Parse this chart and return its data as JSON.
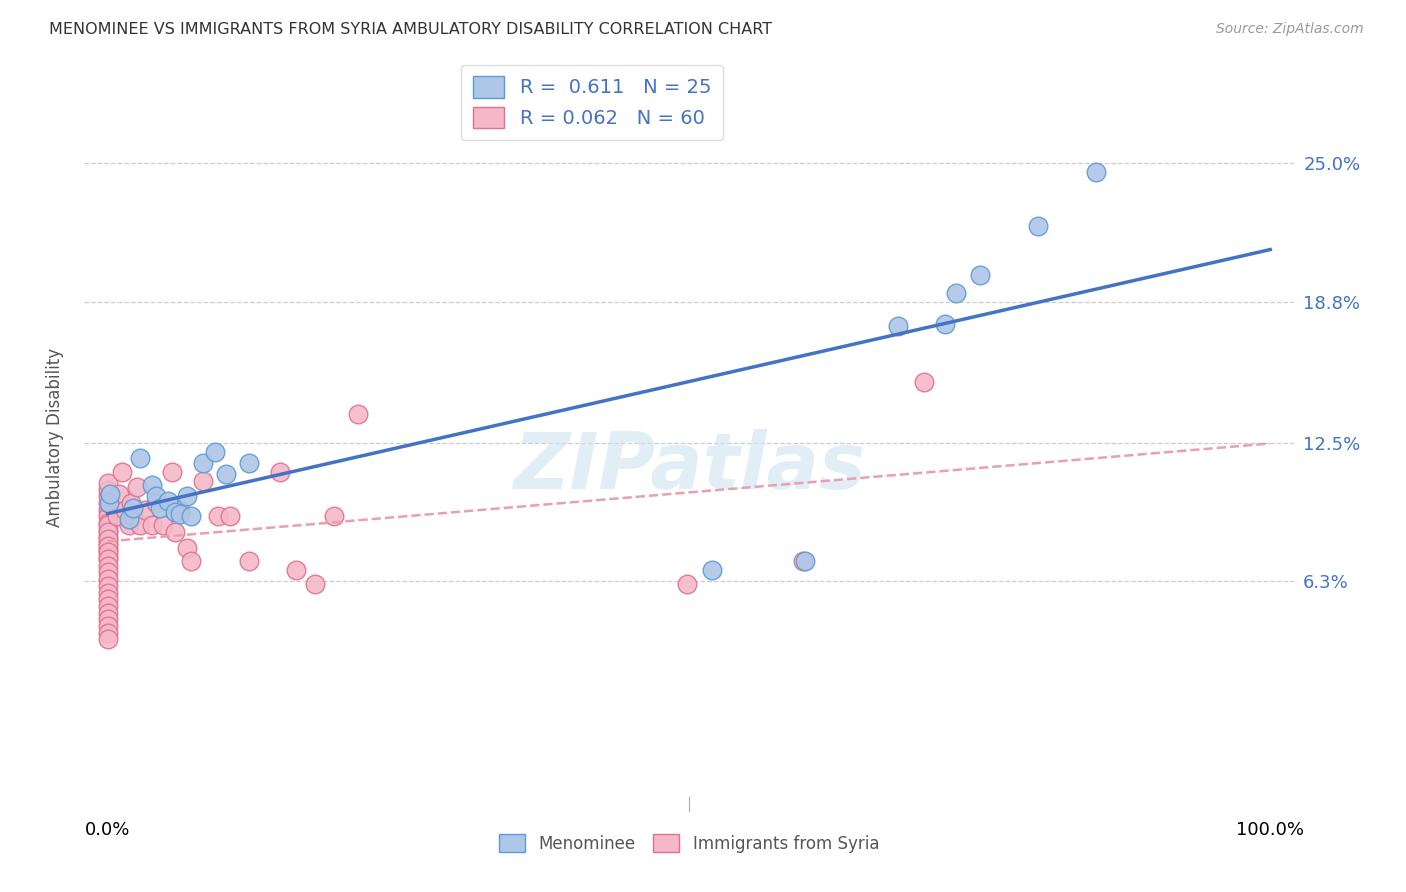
{
  "title": "MENOMINEE VS IMMIGRANTS FROM SYRIA AMBULATORY DISABILITY CORRELATION CHART",
  "source": "Source: ZipAtlas.com",
  "ylabel": "Ambulatory Disability",
  "xlabel": "",
  "xlim": [
    -0.02,
    1.02
  ],
  "ylim": [
    -0.04,
    0.295
  ],
  "yticks": [
    0.063,
    0.125,
    0.188,
    0.25
  ],
  "ytick_labels": [
    "6.3%",
    "12.5%",
    "18.8%",
    "25.0%"
  ],
  "xtick_labels": [
    "0.0%",
    "100.0%"
  ],
  "menominee_color": "#aec6e8",
  "menominee_edge_color": "#5b9bd5",
  "syria_color": "#f4b8c8",
  "syria_edge_color": "#e07090",
  "line_blue": "#4472c4",
  "line_pink": "#e8a0b0",
  "watermark_color": "#d0e4f0",
  "watermark": "ZIPatlas",
  "legend_R_blue": "0.611",
  "legend_N_blue": "25",
  "legend_R_pink": "0.062",
  "legend_N_pink": "60",
  "menominee_x": [
    0.001,
    0.002,
    0.018,
    0.022,
    0.028,
    0.038,
    0.042,
    0.045,
    0.052,
    0.058,
    0.062,
    0.068,
    0.072,
    0.082,
    0.092,
    0.102,
    0.122,
    0.52,
    0.6,
    0.68,
    0.72,
    0.73,
    0.75,
    0.8,
    0.85
  ],
  "menominee_y": [
    0.098,
    0.102,
    0.091,
    0.096,
    0.118,
    0.106,
    0.101,
    0.096,
    0.099,
    0.094,
    0.093,
    0.101,
    0.092,
    0.116,
    0.121,
    0.111,
    0.116,
    0.068,
    0.072,
    0.177,
    0.178,
    0.192,
    0.2,
    0.222,
    0.246
  ],
  "syria_x": [
    0.0,
    0.0,
    0.0,
    0.0,
    0.0,
    0.0,
    0.0,
    0.0,
    0.0,
    0.0,
    0.0,
    0.0,
    0.0,
    0.0,
    0.0,
    0.0,
    0.0,
    0.0,
    0.0,
    0.0,
    0.0,
    0.0,
    0.0,
    0.0,
    0.0,
    0.0,
    0.0,
    0.0,
    0.0,
    0.0,
    0.008,
    0.01,
    0.012,
    0.015,
    0.018,
    0.02,
    0.022,
    0.025,
    0.028,
    0.032,
    0.038,
    0.042,
    0.048,
    0.055,
    0.058,
    0.062,
    0.068,
    0.072,
    0.082,
    0.095,
    0.105,
    0.122,
    0.148,
    0.162,
    0.178,
    0.195,
    0.215,
    0.498,
    0.598,
    0.702
  ],
  "syria_y": [
    0.095,
    0.092,
    0.089,
    0.086,
    0.083,
    0.08,
    0.077,
    0.074,
    0.098,
    0.101,
    0.104,
    0.107,
    0.088,
    0.085,
    0.082,
    0.079,
    0.076,
    0.073,
    0.07,
    0.067,
    0.064,
    0.061,
    0.058,
    0.055,
    0.052,
    0.049,
    0.046,
    0.043,
    0.04,
    0.037,
    0.092,
    0.102,
    0.112,
    0.095,
    0.088,
    0.098,
    0.092,
    0.105,
    0.088,
    0.095,
    0.088,
    0.098,
    0.088,
    0.112,
    0.085,
    0.095,
    0.078,
    0.072,
    0.108,
    0.092,
    0.092,
    0.072,
    0.112,
    0.068,
    0.062,
    0.092,
    0.138,
    0.062,
    0.072,
    0.152
  ],
  "background_color": "#ffffff",
  "grid_color": "#cccccc"
}
